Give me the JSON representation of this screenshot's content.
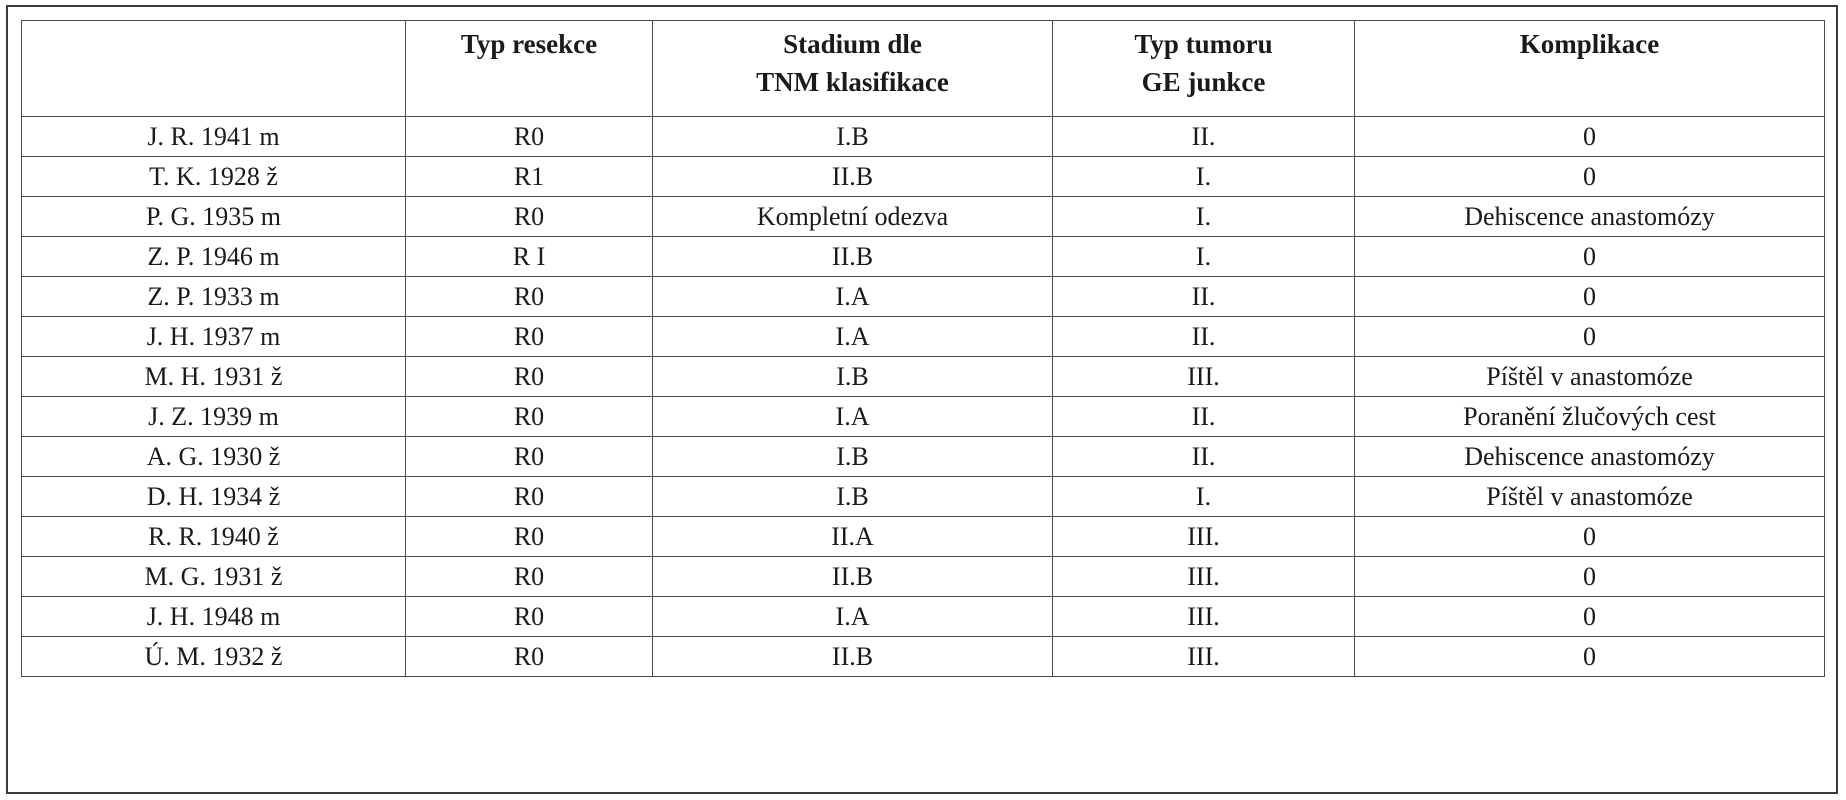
{
  "table": {
    "headers": [
      [
        ""
      ],
      [
        "Typ resekce"
      ],
      [
        "Stadium dle",
        "TNM klasifikace"
      ],
      [
        "Typ tumoru",
        "GE junkce"
      ],
      [
        "Komplikace"
      ]
    ],
    "rows": [
      [
        "J. R. 1941 m",
        "R0",
        "I.B",
        "II.",
        "0"
      ],
      [
        "T. K. 1928 ž",
        "R1",
        "II.B",
        "I.",
        "0"
      ],
      [
        "P. G. 1935 m",
        "R0",
        "Kompletní odezva",
        "I.",
        "Dehiscence anastomózy"
      ],
      [
        "Z. P. 1946 m",
        "R I",
        "II.B",
        "I.",
        "0"
      ],
      [
        "Z. P. 1933 m",
        "R0",
        "I.A",
        "II.",
        "0"
      ],
      [
        "J. H. 1937 m",
        "R0",
        "I.A",
        "II.",
        "0"
      ],
      [
        "M. H. 1931 ž",
        "R0",
        "I.B",
        "III.",
        "Píštěl v anastomóze"
      ],
      [
        "J. Z. 1939 m",
        "R0",
        "I.A",
        "II.",
        "Poranění žlučových cest"
      ],
      [
        "A. G. 1930 ž",
        "R0",
        "I.B",
        "II.",
        "Dehiscence anastomózy"
      ],
      [
        "D. H. 1934 ž",
        "R0",
        "I.B",
        "I.",
        "Píštěl v anastomóze"
      ],
      [
        "R. R. 1940 ž",
        "R0",
        "II.A",
        "III.",
        "0"
      ],
      [
        "M. G. 1931 ž",
        "R0",
        "II.B",
        "III.",
        "0"
      ],
      [
        "J. H. 1948 m",
        "R0",
        "I.A",
        "III.",
        "0"
      ],
      [
        "Ú. M. 1932 ž",
        "R0",
        "II.B",
        "III.",
        "0"
      ]
    ]
  }
}
